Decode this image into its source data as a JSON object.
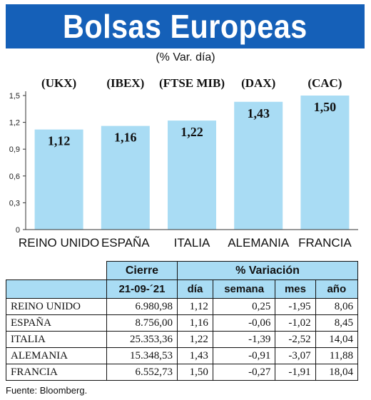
{
  "header": {
    "title": "Bolsas Europeas",
    "subtitle": "(% Var. día)"
  },
  "chart_data": {
    "type": "bar",
    "title": "Bolsas Europeas",
    "subtitle": "(% Var. día)",
    "categories": [
      "REINO UNIDO",
      "ESPAÑA",
      "ITALIA",
      "ALEMANIA",
      "FRANCIA"
    ],
    "codes": [
      "(UKX)",
      "(IBEX)",
      "(FTSE MIB)",
      "(DAX)",
      "(CAC)"
    ],
    "values": [
      1.12,
      1.16,
      1.22,
      1.43,
      1.5
    ],
    "value_labels": [
      "1,12",
      "1,16",
      "1,22",
      "1,43",
      "1,50"
    ],
    "yticks": [
      "0",
      "0,3",
      "0,6",
      "0,9",
      "1,2",
      "1,5"
    ],
    "ylim": [
      0,
      1.5
    ],
    "bar_color": "#a9dcf4",
    "grid": false
  },
  "table": {
    "group_headers": {
      "cierre": "Cierre",
      "variacion": "% Variación"
    },
    "columns": [
      "21-09-´21",
      "día",
      "semana",
      "mes",
      "año"
    ],
    "rows": [
      {
        "name": "REINO UNIDO",
        "cierre": "6.980,98",
        "dia": "1,12",
        "semana": "0,25",
        "mes": "-1,95",
        "anio": "8,06"
      },
      {
        "name": "ESPAÑA",
        "cierre": "8.756,00",
        "dia": "1,16",
        "semana": "-0,06",
        "mes": "-1,02",
        "anio": "8,45"
      },
      {
        "name": "ITALIA",
        "cierre": "25.353,36",
        "dia": "1,22",
        "semana": "-1,39",
        "mes": "-2,52",
        "anio": "14,04"
      },
      {
        "name": "ALEMANIA",
        "cierre": "15.348,53",
        "dia": "1,43",
        "semana": "-0,91",
        "mes": "-3,07",
        "anio": "11,88"
      },
      {
        "name": "FRANCIA",
        "cierre": "6.552,73",
        "dia": "1,50",
        "semana": "-0,27",
        "mes": "-1,91",
        "anio": "18,04"
      }
    ]
  },
  "source": "Fuente: Bloomberg.",
  "colors": {
    "banner": "#1560b8",
    "accent": "#a9dcf4"
  }
}
